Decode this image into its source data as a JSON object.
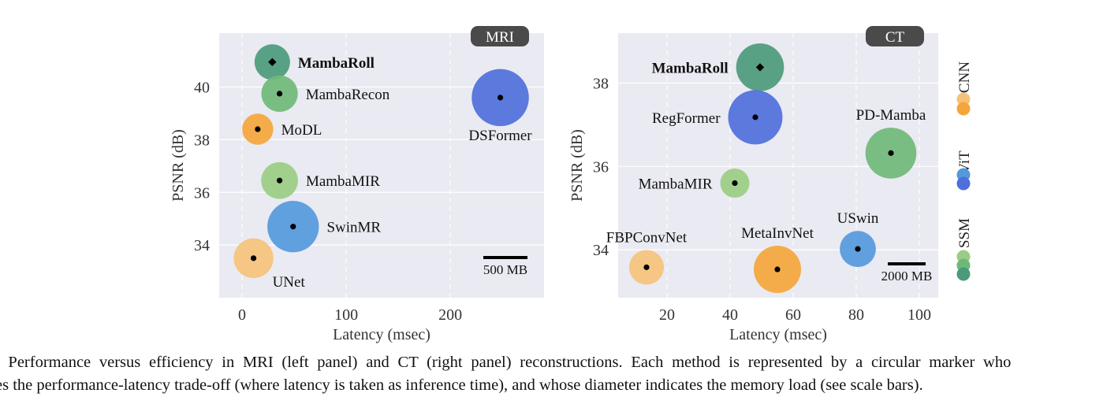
{
  "colors": {
    "plot_bg": "#eaeaf2",
    "grid": "#ffffff",
    "badge_bg": "#4a4a4a",
    "CNN": [
      "#f6c27b",
      "#f4a63c"
    ],
    "ViT": [
      "#5599dd",
      "#4f6fdc"
    ],
    "SSM": [
      "#9acd83",
      "#6fb978",
      "#4c9a7b"
    ]
  },
  "chart_data": [
    {
      "type": "scatter",
      "panel": "MRI",
      "badge": "MRI",
      "xlabel": "Latency (msec)",
      "ylabel": "PSNR (dB)",
      "xlim": [
        -22,
        290
      ],
      "ylim": [
        32.0,
        42.05
      ],
      "xticks": [
        0,
        100,
        200
      ],
      "yticks": [
        34,
        36,
        38,
        40
      ],
      "grid": true,
      "scale_bar": {
        "label": "500 MB",
        "memory_mb": 500
      },
      "points": [
        {
          "name": "MambaRoll",
          "latency": 29,
          "psnr": 40.95,
          "memory_mb": 455,
          "family": "SSM",
          "shade": 2,
          "marker": "diamond",
          "bold": true,
          "label_pos": "right"
        },
        {
          "name": "MambaRecon",
          "latency": 36,
          "psnr": 39.75,
          "memory_mb": 480,
          "family": "SSM",
          "shade": 1,
          "marker": "dot",
          "bold": false,
          "label_pos": "right"
        },
        {
          "name": "MoDL",
          "latency": 15,
          "psnr": 38.4,
          "memory_mb": 350,
          "family": "CNN",
          "shade": 1,
          "marker": "dot",
          "bold": false,
          "label_pos": "right"
        },
        {
          "name": "DSFormer",
          "latency": 248,
          "psnr": 39.6,
          "memory_mb": 1180,
          "family": "ViT",
          "shade": 1,
          "marker": "dot",
          "bold": false,
          "label_pos": "below"
        },
        {
          "name": "MambaMIR",
          "latency": 36,
          "psnr": 36.45,
          "memory_mb": 490,
          "family": "SSM",
          "shade": 0,
          "marker": "dot",
          "bold": false,
          "label_pos": "right"
        },
        {
          "name": "SwinMR",
          "latency": 49,
          "psnr": 34.7,
          "memory_mb": 960,
          "family": "ViT",
          "shade": 0,
          "marker": "dot",
          "bold": false,
          "label_pos": "right"
        },
        {
          "name": "UNet",
          "latency": 11,
          "psnr": 33.5,
          "memory_mb": 570,
          "family": "CNN",
          "shade": 0,
          "marker": "dot",
          "bold": false,
          "label_pos": "below-right"
        }
      ]
    },
    {
      "type": "scatter",
      "panel": "CT",
      "badge": "CT",
      "xlabel": "Latency (msec)",
      "ylabel": "PSNR (dB)",
      "xlim": [
        4.5,
        106
      ],
      "ylim": [
        32.85,
        39.2
      ],
      "xticks": [
        20,
        40,
        60,
        80,
        100
      ],
      "yticks": [
        34,
        36,
        38
      ],
      "grid": true,
      "scale_bar": {
        "label": "2000 MB",
        "memory_mb": 2000
      },
      "points": [
        {
          "name": "MambaRoll",
          "latency": 49.5,
          "psnr": 38.38,
          "memory_mb": 2550,
          "family": "SSM",
          "shade": 2,
          "marker": "diamond",
          "bold": true,
          "label_pos": "left"
        },
        {
          "name": "RegFormer",
          "latency": 48,
          "psnr": 37.18,
          "memory_mb": 3300,
          "family": "ViT",
          "shade": 1,
          "marker": "dot",
          "bold": false,
          "label_pos": "left"
        },
        {
          "name": "PD-Mamba",
          "latency": 91,
          "psnr": 36.32,
          "memory_mb": 2900,
          "family": "SSM",
          "shade": 1,
          "marker": "dot",
          "bold": false,
          "label_pos": "above"
        },
        {
          "name": "MambaMIR",
          "latency": 41.5,
          "psnr": 35.6,
          "memory_mb": 950,
          "family": "SSM",
          "shade": 0,
          "marker": "dot",
          "bold": false,
          "label_pos": "left"
        },
        {
          "name": "FBPConvNet",
          "latency": 13.5,
          "psnr": 33.58,
          "memory_mb": 1350,
          "family": "CNN",
          "shade": 0,
          "marker": "dot",
          "bold": false,
          "label_pos": "above"
        },
        {
          "name": "MetaInvNet",
          "latency": 55,
          "psnr": 33.53,
          "memory_mb": 2500,
          "family": "CNN",
          "shade": 1,
          "marker": "dot",
          "bold": false,
          "label_pos": "above"
        },
        {
          "name": "USwin",
          "latency": 80.5,
          "psnr": 34.02,
          "memory_mb": 1450,
          "family": "ViT",
          "shade": 0,
          "marker": "dot",
          "bold": false,
          "label_pos": "above"
        }
      ]
    }
  ],
  "legend": [
    {
      "label": "CNN",
      "family": "CNN"
    },
    {
      "label": "ViT",
      "family": "ViT"
    },
    {
      "label": "SSM",
      "family": "SSM"
    }
  ],
  "caption": {
    "line1": ": Performance versus efficiency in MRI (left panel) and CT (right panel) reconstructions. Each method is represented by a circular marker who",
    "line2": "es the performance-latency trade-off (where latency is taken as inference time), and whose diameter indicates the memory load (see scale bars)."
  }
}
